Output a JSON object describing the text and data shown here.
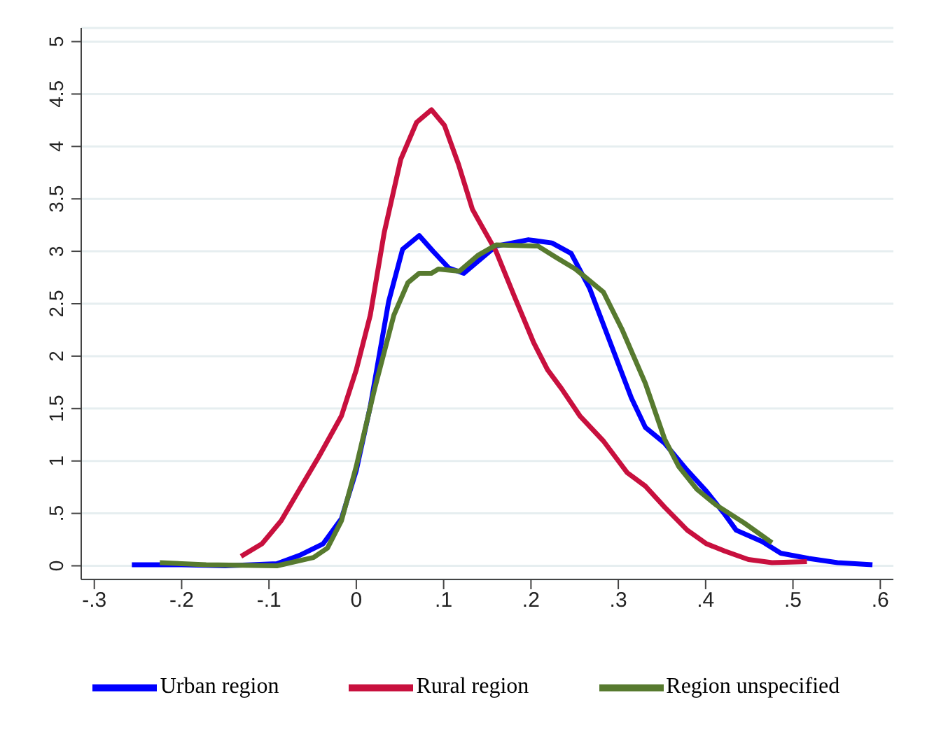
{
  "chart_data": {
    "type": "line",
    "xlim": [
      -0.315,
      0.615
    ],
    "ylim": [
      -0.13,
      5.13
    ],
    "xticks": [
      {
        "value": -0.3,
        "label": "-.3"
      },
      {
        "value": -0.2,
        "label": "-.2"
      },
      {
        "value": -0.1,
        "label": "-.1"
      },
      0,
      {
        "value": 0.1,
        "label": ".1"
      },
      {
        "value": 0.2,
        "label": ".2"
      },
      {
        "value": 0.3,
        "label": ".3"
      },
      {
        "value": 0.4,
        "label": ".4"
      },
      {
        "value": 0.5,
        "label": ".5"
      },
      {
        "value": 0.6,
        "label": ".6"
      }
    ],
    "yticks": [
      0,
      {
        "value": 0.5,
        "label": ".5"
      },
      1,
      1.5,
      2,
      2.5,
      3,
      3.5,
      4,
      4.5,
      5
    ],
    "grid": "y",
    "legend": "bottom",
    "marker": "none",
    "line_style": "solid",
    "series": [
      {
        "name": "Urban region",
        "color": "#0000ff",
        "x": [
          -0.257,
          -0.2,
          -0.15,
          -0.091,
          -0.065,
          -0.038,
          -0.017,
          0,
          0.016,
          0.037,
          0.053,
          0.072,
          0.088,
          0.106,
          0.123,
          0.16,
          0.197,
          0.224,
          0.246,
          0.267,
          0.299,
          0.315,
          0.331,
          0.353,
          0.379,
          0.401,
          0.422,
          0.435,
          0.465,
          0.486,
          0.518,
          0.551,
          0.591
        ],
        "values": [
          0.01,
          0.01,
          0.0,
          0.02,
          0.1,
          0.21,
          0.45,
          0.91,
          1.52,
          2.52,
          3.02,
          3.15,
          3.0,
          2.84,
          2.79,
          3.05,
          3.11,
          3.08,
          2.98,
          2.65,
          1.95,
          1.6,
          1.32,
          1.17,
          0.91,
          0.71,
          0.49,
          0.34,
          0.23,
          0.12,
          0.07,
          0.03,
          0.01
        ]
      },
      {
        "name": "Rural region",
        "color": "#c8103e",
        "x": [
          -0.132,
          -0.108,
          -0.086,
          -0.065,
          -0.043,
          -0.017,
          0,
          0.016,
          0.032,
          0.051,
          0.069,
          0.086,
          0.101,
          0.117,
          0.133,
          0.139,
          0.16,
          0.181,
          0.203,
          0.219,
          0.235,
          0.256,
          0.283,
          0.31,
          0.331,
          0.353,
          0.379,
          0.401,
          0.422,
          0.449,
          0.476,
          0.516
        ],
        "values": [
          0.09,
          0.21,
          0.43,
          0.73,
          1.04,
          1.43,
          1.87,
          2.39,
          3.18,
          3.88,
          4.23,
          4.35,
          4.2,
          3.83,
          3.4,
          3.31,
          3.0,
          2.57,
          2.13,
          1.87,
          1.69,
          1.43,
          1.19,
          0.89,
          0.76,
          0.56,
          0.34,
          0.21,
          0.14,
          0.06,
          0.03,
          0.04
        ]
      },
      {
        "name": "Region unspecified",
        "color": "#577a2f",
        "x": [
          -0.225,
          -0.172,
          -0.091,
          -0.049,
          -0.033,
          -0.017,
          0,
          0.021,
          0.043,
          0.059,
          0.072,
          0.086,
          0.094,
          0.118,
          0.139,
          0.16,
          0.208,
          0.229,
          0.251,
          0.283,
          0.304,
          0.331,
          0.353,
          0.369,
          0.39,
          0.412,
          0.444,
          0.476
        ],
        "values": [
          0.03,
          0.01,
          0.0,
          0.08,
          0.17,
          0.43,
          0.95,
          1.69,
          2.39,
          2.7,
          2.79,
          2.79,
          2.83,
          2.81,
          2.96,
          3.06,
          3.05,
          2.94,
          2.83,
          2.61,
          2.26,
          1.74,
          1.21,
          0.95,
          0.73,
          0.58,
          0.41,
          0.22
        ]
      }
    ]
  }
}
